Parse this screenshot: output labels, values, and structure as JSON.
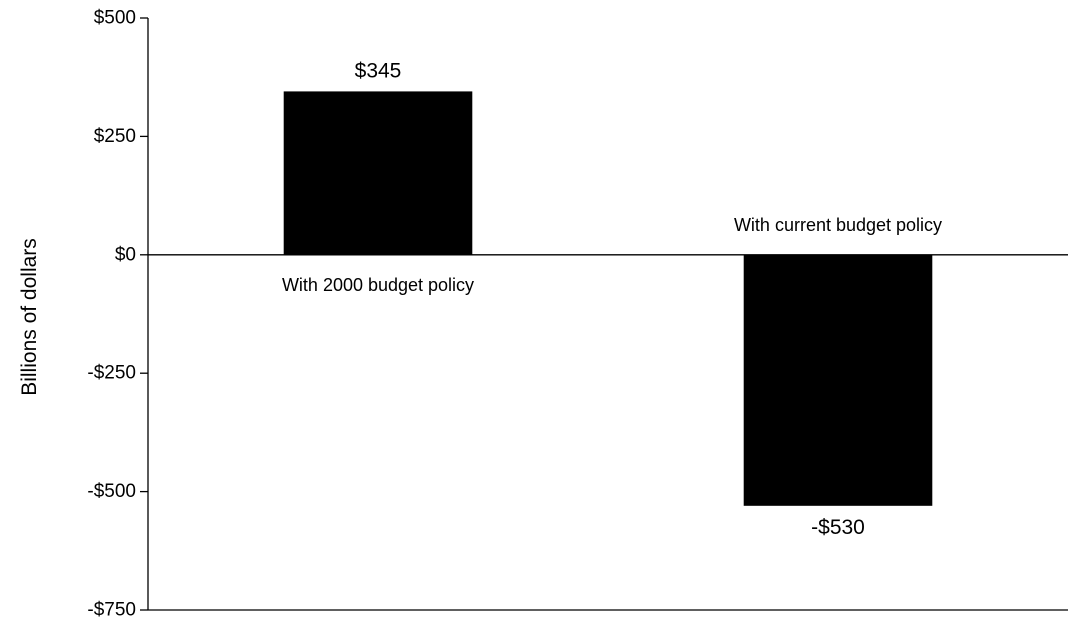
{
  "chart_data": {
    "type": "bar",
    "title": "",
    "xlabel": "",
    "ylabel": "Billions of dollars",
    "ylim": [
      -750,
      500
    ],
    "yticks": [
      500,
      250,
      0,
      -250,
      -500,
      -750
    ],
    "ytick_labels": [
      "$500",
      "$250",
      "$0",
      "-$250",
      "-$500",
      "-$750"
    ],
    "categories": [
      "With 2000 budget policy",
      "With current budget policy"
    ],
    "values": [
      345,
      -530
    ],
    "value_labels": [
      "$345",
      "-$530"
    ],
    "bar_color": "#000000",
    "grid": false,
    "legend": "none"
  }
}
